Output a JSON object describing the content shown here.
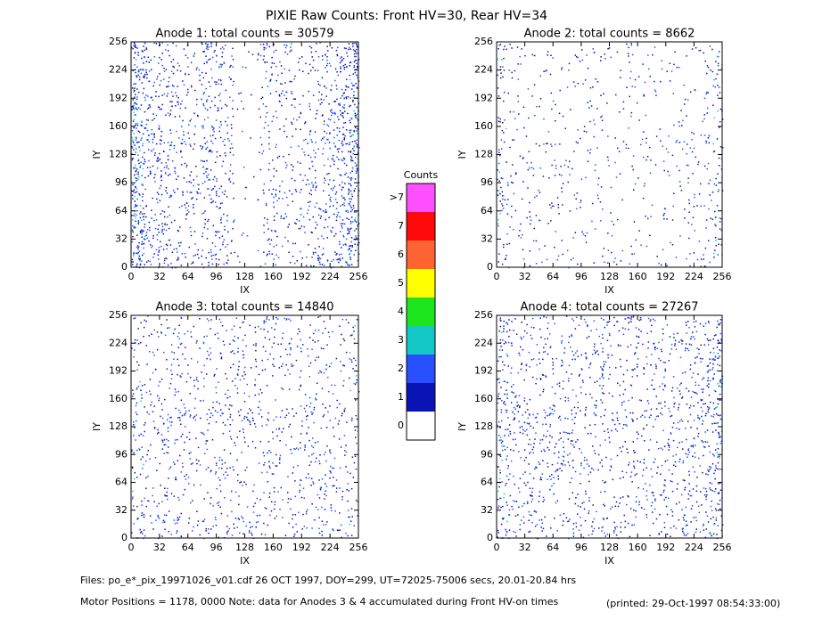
{
  "title": "PIXIE Raw Counts:  Front HV=30, Rear HV=34",
  "chart_data": [
    {
      "type": "heatmap",
      "title": "Anode 1: total counts = 30579",
      "xlabel": "IX",
      "ylabel": "IY",
      "xlim": [
        0,
        256
      ],
      "ylim": [
        0,
        256
      ],
      "xticks": [
        0,
        32,
        64,
        96,
        128,
        160,
        192,
        224,
        256
      ],
      "yticks": [
        0,
        32,
        64,
        96,
        128,
        160,
        192,
        224,
        256
      ]
    },
    {
      "type": "heatmap",
      "title": "Anode 2: total counts = 8662",
      "xlabel": "IX",
      "ylabel": "IY",
      "xlim": [
        0,
        256
      ],
      "ylim": [
        0,
        256
      ],
      "xticks": [
        0,
        32,
        64,
        96,
        128,
        160,
        192,
        224,
        256
      ],
      "yticks": [
        0,
        32,
        64,
        96,
        128,
        160,
        192,
        224,
        256
      ]
    },
    {
      "type": "heatmap",
      "title": "Anode 3: total counts = 14840",
      "xlabel": "IX",
      "ylabel": "IY",
      "xlim": [
        0,
        256
      ],
      "ylim": [
        0,
        256
      ],
      "xticks": [
        0,
        32,
        64,
        96,
        128,
        160,
        192,
        224,
        256
      ],
      "yticks": [
        0,
        32,
        64,
        96,
        128,
        160,
        192,
        224,
        256
      ]
    },
    {
      "type": "heatmap",
      "title": "Anode 4: total counts = 27267",
      "xlabel": "IX",
      "ylabel": "IY",
      "xlim": [
        0,
        256
      ],
      "ylim": [
        0,
        256
      ],
      "xticks": [
        0,
        32,
        64,
        96,
        128,
        160,
        192,
        224,
        256
      ],
      "yticks": [
        0,
        32,
        64,
        96,
        128,
        160,
        192,
        224,
        256
      ]
    }
  ],
  "colorbar": {
    "title": "Counts",
    "labels": [
      "0",
      "1",
      "2",
      "3",
      "4",
      "5",
      "6",
      "7",
      ">7"
    ],
    "colors": [
      "#ffffff",
      "#0a14b4",
      "#2850ff",
      "#14c8c8",
      "#1ee61e",
      "#ffff00",
      "#ff6432",
      "#ff0a0a",
      "#ff50ff"
    ]
  },
  "footer": {
    "files": "Files: po_e*_pix_19971026_v01.cdf    26 OCT 1997, DOY=299, UT=72025-75006 secs, 20.01-20.84 hrs",
    "motor": "Motor Positions = 1178, 0000    Note: data for Anodes 3 & 4 accumulated during Front HV-on times",
    "printed": "(printed: 29-Oct-1997 08:54:33:00)"
  }
}
